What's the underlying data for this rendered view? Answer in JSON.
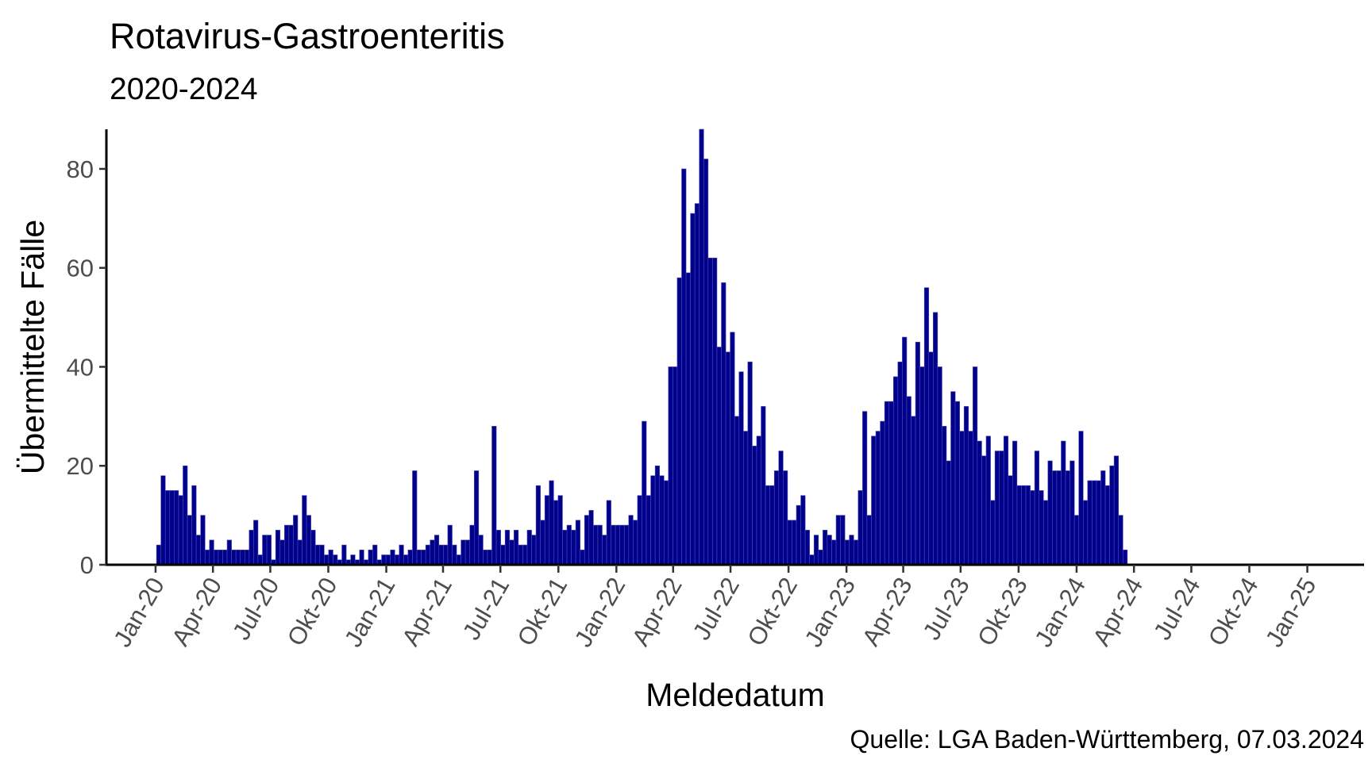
{
  "chart_data": {
    "type": "bar",
    "title": "Rotavirus-Gastroenteritis",
    "subtitle": "2020-2024",
    "xlabel": "Meldedatum",
    "ylabel": "Übermittelte Fälle",
    "caption": "Quelle: LGA Baden-Württemberg, 07.03.2024",
    "x_start": "2020-01-06",
    "x_step_days": 7,
    "xlim": [
      "2019-10-15",
      "2025-04-01"
    ],
    "ylim": [
      0,
      88
    ],
    "y_ticks": [
      0,
      20,
      40,
      60,
      80
    ],
    "x_ticks": [
      {
        "date": "2020-01-01",
        "label": "Jan-20"
      },
      {
        "date": "2020-04-01",
        "label": "Apr-20"
      },
      {
        "date": "2020-07-01",
        "label": "Jul-20"
      },
      {
        "date": "2020-10-01",
        "label": "Okt-20"
      },
      {
        "date": "2021-01-01",
        "label": "Jan-21"
      },
      {
        "date": "2021-04-01",
        "label": "Apr-21"
      },
      {
        "date": "2021-07-01",
        "label": "Jul-21"
      },
      {
        "date": "2021-10-01",
        "label": "Okt-21"
      },
      {
        "date": "2022-01-01",
        "label": "Jan-22"
      },
      {
        "date": "2022-04-01",
        "label": "Apr-22"
      },
      {
        "date": "2022-07-01",
        "label": "Jul-22"
      },
      {
        "date": "2022-10-01",
        "label": "Okt-22"
      },
      {
        "date": "2023-01-01",
        "label": "Jan-23"
      },
      {
        "date": "2023-04-01",
        "label": "Apr-23"
      },
      {
        "date": "2023-07-01",
        "label": "Jul-23"
      },
      {
        "date": "2023-10-01",
        "label": "Okt-23"
      },
      {
        "date": "2024-01-01",
        "label": "Jan-24"
      },
      {
        "date": "2024-04-01",
        "label": "Apr-24"
      },
      {
        "date": "2024-07-01",
        "label": "Jul-24"
      },
      {
        "date": "2024-10-01",
        "label": "Okt-24"
      },
      {
        "date": "2025-01-01",
        "label": "Jan-25"
      }
    ],
    "bar_color": "#00008B",
    "values": [
      4,
      18,
      15,
      15,
      15,
      14,
      20,
      10,
      16,
      6,
      10,
      3,
      5,
      3,
      3,
      3,
      5,
      3,
      3,
      3,
      3,
      7,
      9,
      2,
      6,
      6,
      1,
      7,
      5,
      8,
      8,
      10,
      5,
      14,
      10,
      7,
      4,
      4,
      2,
      3,
      2,
      1,
      4,
      1,
      2,
      1,
      3,
      1,
      3,
      4,
      1,
      2,
      2,
      3,
      2,
      4,
      2,
      3,
      19,
      3,
      3,
      4,
      5,
      6,
      4,
      4,
      8,
      4,
      2,
      5,
      5,
      8,
      19,
      6,
      3,
      3,
      28,
      7,
      4,
      7,
      5,
      7,
      4,
      4,
      7,
      6,
      16,
      9,
      14,
      17,
      13,
      14,
      7,
      8,
      7,
      9,
      3,
      10,
      11,
      8,
      8,
      6,
      13,
      8,
      8,
      8,
      8,
      10,
      9,
      14,
      29,
      14,
      18,
      20,
      18,
      17,
      40,
      40,
      58,
      80,
      59,
      71,
      73,
      88,
      82,
      62,
      62,
      44,
      57,
      43,
      47,
      30,
      39,
      27,
      41,
      24,
      26,
      32,
      16,
      16,
      19,
      23,
      19,
      9,
      9,
      12,
      14,
      7,
      2,
      6,
      3,
      7,
      6,
      5,
      10,
      10,
      5,
      6,
      5,
      15,
      31,
      10,
      26,
      27,
      29,
      33,
      33,
      38,
      41,
      46,
      34,
      30,
      45,
      40,
      56,
      43,
      51,
      40,
      28,
      21,
      35,
      33,
      27,
      32,
      27,
      40,
      25,
      22,
      26,
      13,
      23,
      23,
      26,
      18,
      25,
      16,
      16,
      16,
      15,
      23,
      15,
      13,
      21,
      19,
      19,
      25,
      19,
      21,
      10,
      27,
      13,
      17,
      17,
      17,
      19,
      16,
      20,
      22,
      10,
      3
    ]
  }
}
